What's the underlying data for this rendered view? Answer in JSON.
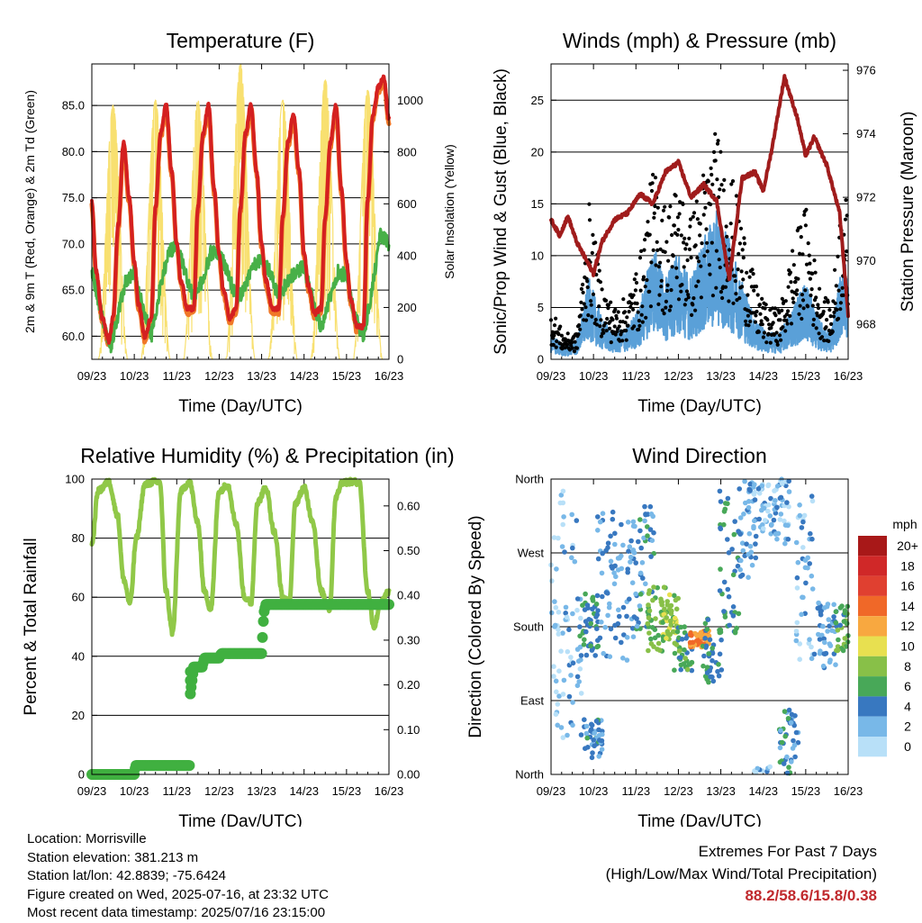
{
  "chart_data": [
    {
      "type": "line",
      "title": "Temperature (F)",
      "xlabel": "Time (Day/UTC)",
      "ylabel": "2m & 9m T (Red, Orange) & 2m Td (Green)",
      "y2label": "Solar Insolation (Yellow)",
      "x_ticks": [
        "09/23",
        "10/23",
        "11/23",
        "12/23",
        "13/23",
        "14/23",
        "15/23",
        "16/23"
      ],
      "y_ticks": [
        "60.0",
        "65.0",
        "70.0",
        "75.0",
        "80.0",
        "85.0"
      ],
      "y2_ticks": [
        "0",
        "200",
        "400",
        "600",
        "800",
        "1000"
      ],
      "ylim": [
        57.5,
        89.5
      ],
      "y2lim": [
        0,
        1140
      ],
      "grid": true,
      "colors": {
        "t2m": "#d42020",
        "t9m": "#f07828",
        "td": "#48b048",
        "solar": "#f8e070"
      },
      "series": [
        {
          "key": "t2m",
          "x_days": [
            0,
            0.1,
            0.25,
            0.4,
            0.5,
            0.62,
            0.75,
            0.88,
            1,
            1.1,
            1.25,
            1.4,
            1.5,
            1.62,
            1.75,
            1.88,
            2,
            2.1,
            2.25,
            2.4,
            2.5,
            2.62,
            2.75,
            2.88,
            3,
            3.1,
            3.25,
            3.4,
            3.5,
            3.62,
            3.75,
            3.88,
            4,
            4.1,
            4.25,
            4.4,
            4.5,
            4.62,
            4.75,
            4.88,
            5,
            5.1,
            5.25,
            5.4,
            5.5,
            5.62,
            5.75,
            5.88,
            6,
            6.1,
            6.25,
            6.4,
            6.5,
            6.62,
            6.75,
            6.88,
            7
          ],
          "values": [
            74.5,
            67,
            62,
            59.5,
            62,
            72,
            81,
            75,
            68,
            63.5,
            60,
            62,
            74,
            82,
            85,
            78,
            70,
            66,
            63,
            63,
            74,
            82,
            85,
            76,
            69,
            65,
            62,
            63,
            74,
            82,
            85,
            78,
            70,
            66,
            63,
            63,
            73,
            81,
            84,
            78,
            69,
            65.5,
            62.5,
            63,
            73,
            81,
            85,
            76,
            68,
            64,
            61,
            61,
            75,
            84,
            87,
            88,
            83.5
          ]
        },
        {
          "key": "td",
          "x_days": [
            0,
            0.2,
            0.35,
            0.45,
            0.6,
            0.8,
            1,
            1.2,
            1.4,
            1.6,
            1.8,
            2,
            2.2,
            2.4,
            2.6,
            2.8,
            3,
            3.2,
            3.4,
            3.6,
            3.8,
            4,
            4.2,
            4.4,
            4.6,
            4.8,
            5,
            5.2,
            5.4,
            5.6,
            5.8,
            6,
            6.2,
            6.4,
            6.6,
            6.8,
            7
          ],
          "values": [
            67,
            63,
            60,
            59,
            62,
            66,
            67,
            63,
            60,
            65,
            69,
            70,
            67,
            64,
            66,
            69,
            69,
            67,
            64,
            65,
            68,
            68,
            67,
            64,
            66,
            67,
            67.5,
            64,
            61,
            64,
            67,
            66.5,
            62,
            60,
            65,
            71,
            70
          ]
        },
        {
          "key": "solar",
          "x_days": [
            0.5,
            1.5,
            2.5,
            3.5,
            4.5,
            5.5,
            6.5
          ],
          "values": [
            980,
            1000,
            1000,
            1140,
            1000,
            1080,
            1040
          ]
        }
      ]
    },
    {
      "type": "line",
      "title": "Winds (mph) & Pressure (mb)",
      "xlabel": "Time (Day/UTC)",
      "ylabel": "Sonic/Prop Wind & Gust (Blue, Black)",
      "y2label": "Station Pressure (Maroon)",
      "x_ticks": [
        "09/23",
        "10/23",
        "11/23",
        "12/23",
        "13/23",
        "14/23",
        "15/23",
        "16/23"
      ],
      "y_ticks": [
        "0",
        "5",
        "10",
        "15",
        "20",
        "25"
      ],
      "y2_ticks": [
        "968",
        "970",
        "972",
        "974",
        "976"
      ],
      "ylim": [
        0,
        28.5
      ],
      "y2lim": [
        966.9,
        976.2
      ],
      "grid": true,
      "colors": {
        "wind": "#5aa0d8",
        "gust": "#000000",
        "pressure": "#a01c1c"
      },
      "series": [
        {
          "key": "pressure",
          "x_days": [
            0,
            0.2,
            0.4,
            0.6,
            0.8,
            1.0,
            1.2,
            1.5,
            1.8,
            2.1,
            2.4,
            2.7,
            3.0,
            3.3,
            3.6,
            3.9,
            4.2,
            4.5,
            4.8,
            5.0,
            5.2,
            5.5,
            5.8,
            6.0,
            6.2,
            6.5,
            6.8,
            7.0
          ],
          "values": [
            971.3,
            970.8,
            971.4,
            970.6,
            970.1,
            969.6,
            970.6,
            971.3,
            971.5,
            972.1,
            971.8,
            972.8,
            973.1,
            972.0,
            972.4,
            971.9,
            969.4,
            972.6,
            972.8,
            972.2,
            973.5,
            975.8,
            974.5,
            973.3,
            973.9,
            973.0,
            971.5,
            968.3
          ]
        },
        {
          "key": "wind",
          "x_days": [
            0,
            0.3,
            0.6,
            0.9,
            1.2,
            1.5,
            1.8,
            2.1,
            2.4,
            2.7,
            3.0,
            3.3,
            3.6,
            3.9,
            4.2,
            4.5,
            4.8,
            5.1,
            5.4,
            5.7,
            6.0,
            6.3,
            6.6,
            6.9,
            7.0
          ],
          "values": [
            2,
            1,
            1.5,
            6,
            3,
            2,
            2.5,
            4,
            9,
            6,
            8,
            6,
            9,
            11,
            9,
            6,
            3,
            2,
            2,
            4,
            6,
            3,
            2,
            8,
            6
          ]
        },
        {
          "key": "gust",
          "x_days": [
            0,
            0.3,
            0.6,
            0.9,
            1.2,
            1.5,
            1.8,
            2.1,
            2.4,
            2.7,
            3.0,
            3.3,
            3.6,
            3.9,
            4.2,
            4.5,
            4.8,
            5.1,
            5.4,
            5.7,
            6.0,
            6.3,
            6.6,
            6.9,
            7.0
          ],
          "values": [
            4,
            2,
            2,
            12,
            6,
            4,
            5,
            8,
            15,
            12,
            14,
            11,
            15,
            18,
            15,
            11,
            6,
            4,
            4,
            9,
            12,
            6,
            4,
            15,
            10
          ]
        }
      ]
    },
    {
      "type": "line",
      "title": "Relative Humidity (%) & Precipitation (in)",
      "xlabel": "Time (Day/UTC)",
      "ylabel": "Percent & Total Rainfall",
      "x_ticks": [
        "09/23",
        "10/23",
        "11/23",
        "12/23",
        "13/23",
        "14/23",
        "15/23",
        "16/23"
      ],
      "y_ticks": [
        "0",
        "20",
        "40",
        "60",
        "80",
        "100"
      ],
      "y2_ticks": [
        "0.00",
        "0.10",
        "0.20",
        "0.30",
        "0.40",
        "0.50",
        "0.60"
      ],
      "ylim": [
        0,
        100
      ],
      "y2lim": [
        0,
        0.66
      ],
      "grid": true,
      "colors": {
        "rh": "#90c848",
        "precip": "#40b040"
      },
      "series": [
        {
          "key": "rh",
          "x_days": [
            0,
            0.15,
            0.4,
            0.6,
            0.75,
            0.9,
            1.05,
            1.25,
            1.45,
            1.6,
            1.75,
            1.9,
            2.1,
            2.3,
            2.5,
            2.65,
            2.8,
            3.0,
            3.2,
            3.4,
            3.6,
            3.75,
            3.9,
            4.1,
            4.3,
            4.5,
            4.65,
            4.8,
            5.0,
            5.2,
            5.4,
            5.6,
            5.75,
            5.9,
            6.1,
            6.3,
            6.5,
            6.65,
            6.8,
            7.0
          ],
          "values": [
            78,
            96,
            99,
            88,
            66,
            58,
            80,
            98,
            99,
            99,
            62,
            48,
            96,
            99,
            85,
            62,
            56,
            96,
            98,
            85,
            60,
            58,
            92,
            97,
            82,
            60,
            58,
            92,
            97,
            86,
            62,
            56,
            94,
            99,
            99,
            99,
            62,
            50,
            58,
            62
          ]
        },
        {
          "key": "precip",
          "x_days": [
            0,
            1.0,
            1.03,
            2.3,
            2.32,
            2.4,
            2.6,
            2.65,
            3.0,
            3.05,
            4.0,
            4.05,
            4.1,
            4.2,
            7.0
          ],
          "values": [
            0.0,
            0.0,
            0.02,
            0.02,
            0.18,
            0.24,
            0.24,
            0.26,
            0.26,
            0.27,
            0.27,
            0.36,
            0.38,
            0.38,
            0.38
          ]
        }
      ]
    },
    {
      "type": "scatter",
      "title": "Wind Direction",
      "xlabel": "Time (Day/UTC)",
      "ylabel": "Direction (Colored By Speed)",
      "x_ticks": [
        "09/23",
        "10/23",
        "11/23",
        "12/23",
        "13/23",
        "14/23",
        "15/23",
        "16/23"
      ],
      "y_ticks": [
        "North",
        "East",
        "South",
        "West",
        "North"
      ],
      "ylim": [
        0,
        360
      ],
      "grid": true,
      "colorbar": {
        "title": "mph",
        "labels": [
          "20+",
          "18",
          "16",
          "14",
          "12",
          "10",
          "8",
          "6",
          "4",
          "2",
          "0"
        ],
        "colors": [
          "#a81818",
          "#d02828",
          "#e04030",
          "#f06828",
          "#f8a840",
          "#e8e050",
          "#88c048",
          "#48a858",
          "#3878c0",
          "#78b8e8",
          "#b8e0f8"
        ]
      },
      "clusters": [
        {
          "day": 0.1,
          "dir": 200,
          "spread": 150,
          "speed": 1
        },
        {
          "day": 0.5,
          "dir": 180,
          "spread": 140,
          "speed": 2
        },
        {
          "day": 0.9,
          "dir": 180,
          "spread": 40,
          "speed": 5
        },
        {
          "day": 1.0,
          "dir": 45,
          "spread": 25,
          "speed": 4
        },
        {
          "day": 1.3,
          "dir": 230,
          "spread": 90,
          "speed": 3
        },
        {
          "day": 1.8,
          "dir": 220,
          "spread": 90,
          "speed": 3
        },
        {
          "day": 2.2,
          "dir": 250,
          "spread": 80,
          "speed": 4
        },
        {
          "day": 2.5,
          "dir": 190,
          "spread": 40,
          "speed": 7
        },
        {
          "day": 2.8,
          "dir": 190,
          "spread": 30,
          "speed": 8
        },
        {
          "day": 3.1,
          "dir": 150,
          "spread": 30,
          "speed": 6
        },
        {
          "day": 3.5,
          "dir": 165,
          "spread": 10,
          "speed": 13
        },
        {
          "day": 3.8,
          "dir": 150,
          "spread": 40,
          "speed": 5
        },
        {
          "day": 4.2,
          "dir": 260,
          "spread": 90,
          "speed": 5
        },
        {
          "day": 4.6,
          "dir": 300,
          "spread": 60,
          "speed": 3
        },
        {
          "day": 5.0,
          "dir": 330,
          "spread": 40,
          "speed": 2
        },
        {
          "day": 5.4,
          "dir": 320,
          "spread": 40,
          "speed": 2
        },
        {
          "day": 5.6,
          "dir": 40,
          "spread": 40,
          "speed": 4
        },
        {
          "day": 6.0,
          "dir": 240,
          "spread": 100,
          "speed": 2
        },
        {
          "day": 6.5,
          "dir": 170,
          "spread": 40,
          "speed": 3
        },
        {
          "day": 6.9,
          "dir": 180,
          "spread": 30,
          "speed": 6
        }
      ]
    }
  ],
  "info": {
    "location": "Location: Morrisville",
    "elevation": "Station elevation: 381.213 m",
    "latlon": "Station lat/lon: 42.8839; -75.6424",
    "created": "Figure created on Wed, 2025-07-16, at 23:32 UTC",
    "latest": "Most recent data timestamp: 2025/07/16 23:15:00"
  },
  "extremes": {
    "title": "Extremes For Past 7 Days",
    "subtitle": "(High/Low/Max Wind/Total Precipitation)",
    "values": "88.2/58.6/15.8/0.38",
    "color": "#c0292d"
  }
}
